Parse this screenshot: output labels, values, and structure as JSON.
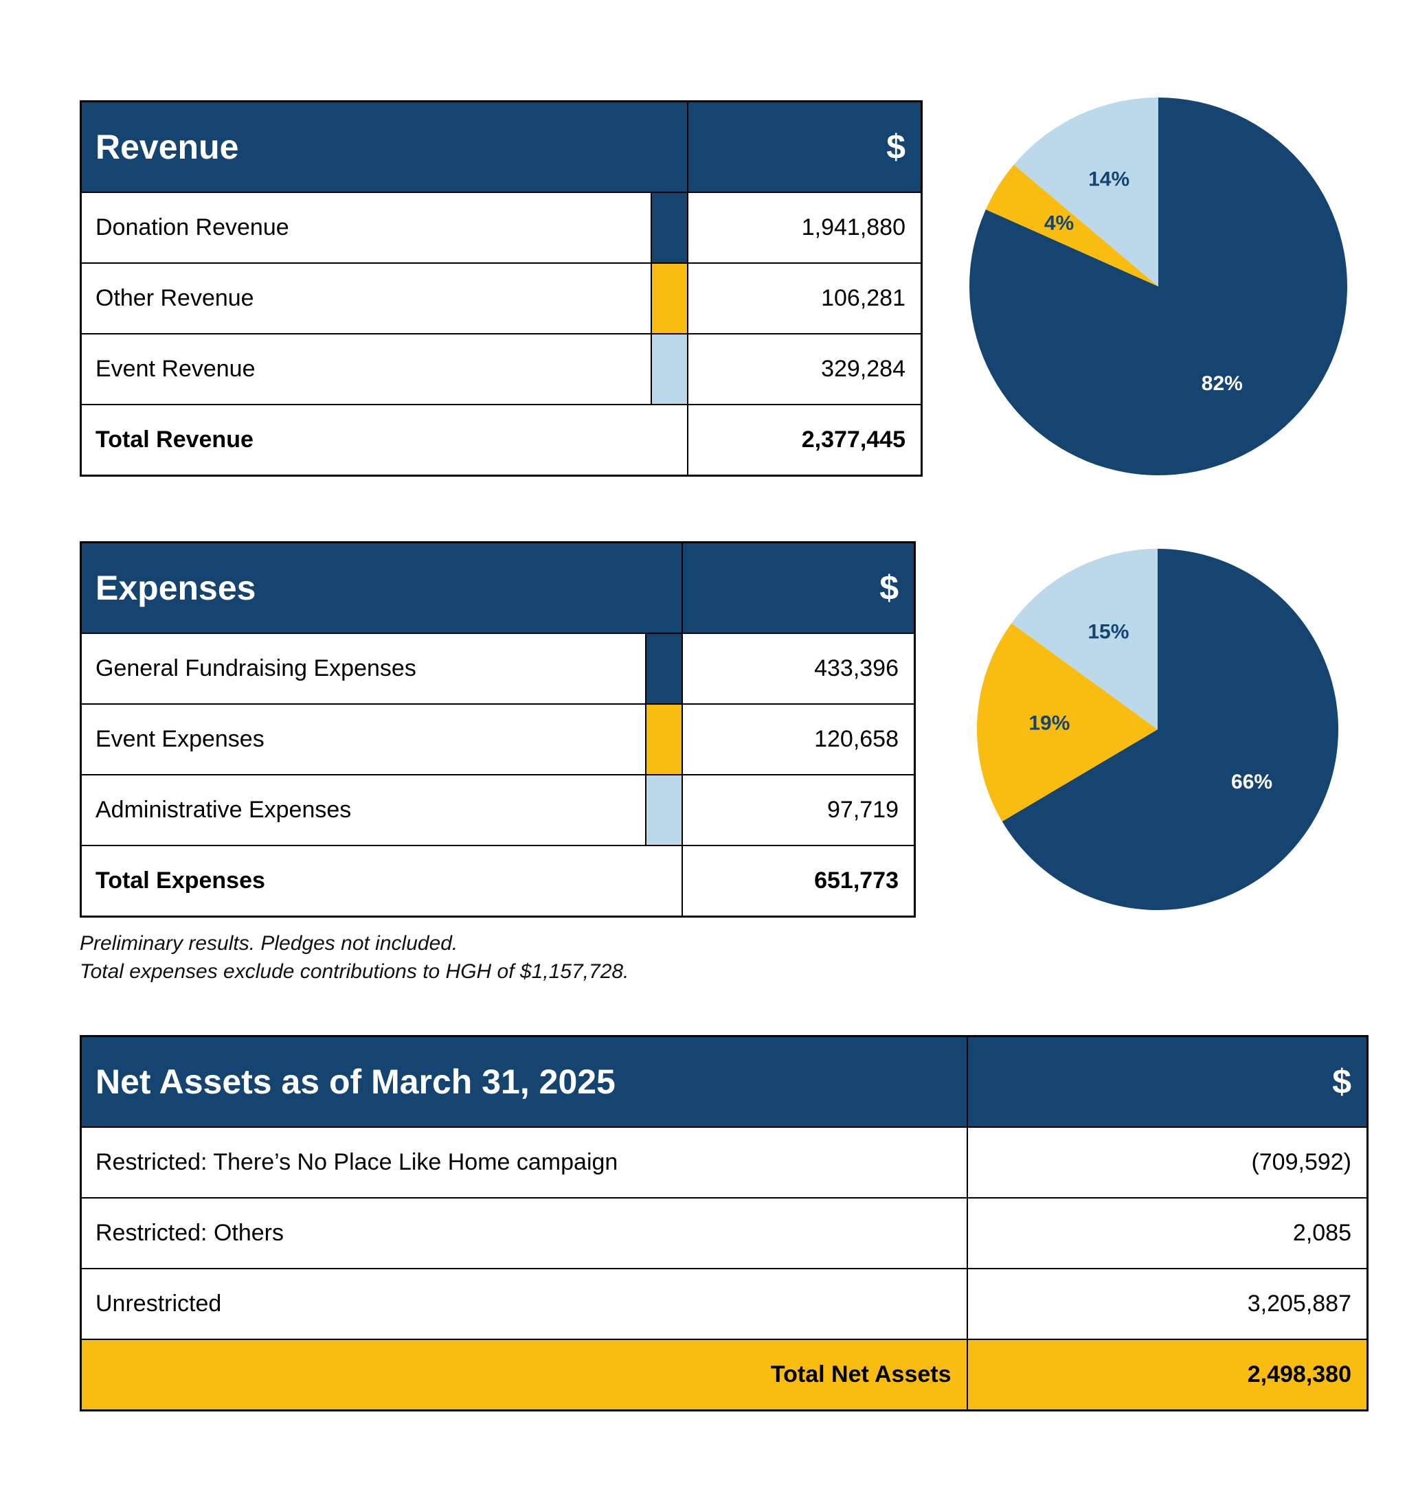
{
  "colors": {
    "navy": "#154470",
    "gold": "#f9bd12",
    "light_blue": "#bcd9ec"
  },
  "revenue": {
    "title": "Revenue",
    "currency": "$",
    "rows": [
      {
        "label": "Donation Revenue",
        "value": "1,941,880",
        "swatch": "#154470"
      },
      {
        "label": "Other Revenue",
        "value": "106,281",
        "swatch": "#f9bd12"
      },
      {
        "label": "Event Revenue",
        "value": "329,284",
        "swatch": "#bcd9ec"
      }
    ],
    "total_label": "Total Revenue",
    "total_value": "2,377,445"
  },
  "expenses": {
    "title": "Expenses",
    "currency": "$",
    "rows": [
      {
        "label": "General Fundraising Expenses",
        "value": "433,396",
        "swatch": "#154470"
      },
      {
        "label": "Event Expenses",
        "value": "120,658",
        "swatch": "#f9bd12"
      },
      {
        "label": "Administrative Expenses",
        "value": "97,719",
        "swatch": "#bcd9ec"
      }
    ],
    "total_label": "Total Expenses",
    "total_value": "651,773"
  },
  "notes": {
    "line1": "Preliminary results. Pledges not included.",
    "line2": "Total expenses exclude contributions to HGH of $1,157,728."
  },
  "net_assets": {
    "title": "Net Assets as of March 31, 2025",
    "currency": "$",
    "rows": [
      {
        "label": "Restricted: There’s No Place Like Home campaign",
        "value": "(709,592)"
      },
      {
        "label": "Restricted: Others",
        "value": "2,085"
      },
      {
        "label": "Unrestricted",
        "value": "3,205,887"
      }
    ],
    "total_label": "Total Net Assets",
    "total_value": "2,498,380"
  },
  "chart_data": [
    {
      "type": "pie",
      "categories": [
        "Donation Revenue",
        "Other Revenue",
        "Event Revenue"
      ],
      "values": [
        1941880,
        106281,
        329284
      ],
      "labels": [
        "82%",
        "4%",
        "14%"
      ],
      "colors": [
        "#154470",
        "#f9bd12",
        "#bcd9ec"
      ],
      "label_colors": [
        "#ffffff",
        "#154470",
        "#154470"
      ]
    },
    {
      "type": "pie",
      "categories": [
        "General Fundraising Expenses",
        "Event Expenses",
        "Administrative Expenses"
      ],
      "values": [
        433396,
        120658,
        97719
      ],
      "labels": [
        "66%",
        "19%",
        "15%"
      ],
      "colors": [
        "#154470",
        "#f9bd12",
        "#bcd9ec"
      ],
      "label_colors": [
        "#ffffff",
        "#154470",
        "#154470"
      ]
    }
  ]
}
